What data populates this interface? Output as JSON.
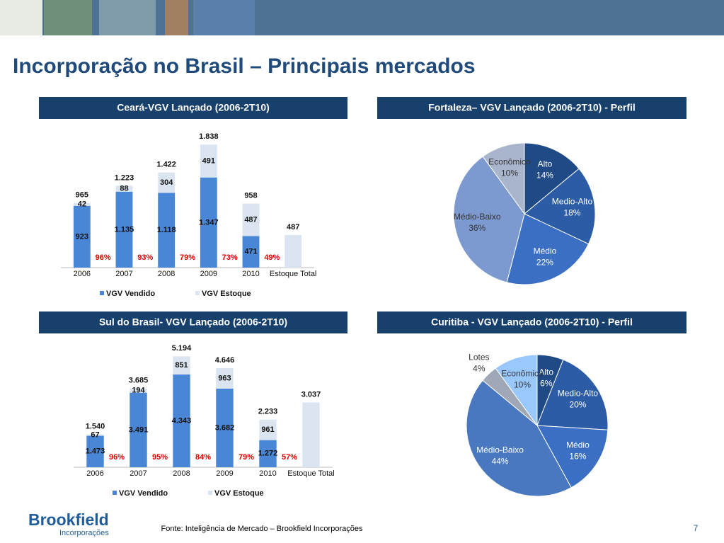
{
  "title": "Incorporação no Brasil – Principais mercados",
  "chart_data": [
    {
      "type": "bar",
      "stacked": true,
      "title": "Ceará-VGV Lançado (2006-2T10)",
      "categories": [
        "2006",
        "2007",
        "2008",
        "2009",
        "2010",
        "Estoque Total"
      ],
      "series": [
        {
          "name": "VGV Vendido",
          "color": "#4a86d6",
          "values": [
            923,
            1135,
            1118,
            1347,
            471,
            null
          ],
          "value_labels": [
            "923",
            "1.135",
            "1.118",
            "1.347",
            "471",
            null
          ]
        },
        {
          "name": "VGV Estoque",
          "color": "#dbe5f1",
          "values": [
            42,
            88,
            304,
            491,
            487,
            487
          ],
          "value_labels": [
            "42",
            "88",
            "304",
            "491",
            "487",
            null
          ]
        }
      ],
      "totals": {
        "values": [
          965,
          1223,
          1422,
          1838,
          958,
          487
        ],
        "value_labels": [
          "965",
          "1.223",
          "1.422",
          "1.838",
          "958",
          "487"
        ]
      },
      "sold_share": {
        "color": "#e00000",
        "values": [
          96,
          93,
          79,
          73,
          49,
          null
        ],
        "value_labels": [
          "96%",
          "93%",
          "79%",
          "73%",
          "49%",
          null
        ]
      },
      "ylim": [
        0,
        2000
      ],
      "legend": "bottom"
    },
    {
      "type": "pie",
      "title": "Fortaleza– VGV Lançado (2006-2T10) - Perfil",
      "categories": [
        "Alto",
        "Medio-Alto",
        "Médio",
        "Médio-Baixo",
        "Econômico"
      ],
      "values": [
        14,
        18,
        22,
        36,
        10
      ],
      "value_labels": [
        "14%",
        "18%",
        "22%",
        "36%",
        "10%"
      ],
      "colors": [
        "#1f4a86",
        "#2c5ca6",
        "#3b6fc4",
        "#7d9ad0",
        "#a9b5cc"
      ]
    },
    {
      "type": "bar",
      "stacked": true,
      "title": "Sul do Brasil- VGV Lançado (2006-2T10)",
      "categories": [
        "2006",
        "2007",
        "2008",
        "2009",
        "2010",
        "Estoque Total"
      ],
      "series": [
        {
          "name": "VGV Vendido",
          "color": "#4a86d6",
          "values": [
            1473,
            3491,
            4343,
            3682,
            1272,
            null
          ],
          "value_labels": [
            "1.473",
            "3.491",
            "4.343",
            "3.682",
            "1.272",
            null
          ]
        },
        {
          "name": "VGV Estoque",
          "color": "#dbe5f1",
          "values": [
            67,
            194,
            851,
            963,
            961,
            3037
          ],
          "value_labels": [
            "67",
            "194",
            "851",
            "963",
            "961",
            null
          ]
        }
      ],
      "totals": {
        "values": [
          1540,
          3685,
          5194,
          4646,
          2233,
          3037
        ],
        "value_labels": [
          "1.540",
          "3.685",
          "5.194",
          "4.646",
          "2.233",
          "3.037"
        ]
      },
      "sold_share": {
        "color": "#e00000",
        "values": [
          96,
          95,
          84,
          79,
          57,
          null
        ],
        "value_labels": [
          "96%",
          "95%",
          "84%",
          "79%",
          "57%",
          null
        ]
      },
      "ylim": [
        0,
        6000
      ],
      "legend": "bottom"
    },
    {
      "type": "pie",
      "title": "Curitiba - VGV Lançado (2006-2T10) - Perfil",
      "categories": [
        "Alto",
        "Medio-Alto",
        "Médio",
        "Médio-Baixo",
        "Lotes",
        "Econômico"
      ],
      "values": [
        6,
        20,
        16,
        44,
        4,
        10
      ],
      "value_labels": [
        "6%",
        "20%",
        "16%",
        "44%",
        "4%",
        "10%"
      ],
      "colors": [
        "#1f4a86",
        "#2c5ca6",
        "#3b6fc4",
        "#4a78c0",
        "#a0a8b8",
        "#99c8ff"
      ]
    }
  ],
  "footer": {
    "source": "Fonte: Inteligência de Mercado – Brookfield Incorporações",
    "page": "7",
    "logo": "Brookfield",
    "logo_sub": "Incorporações"
  }
}
